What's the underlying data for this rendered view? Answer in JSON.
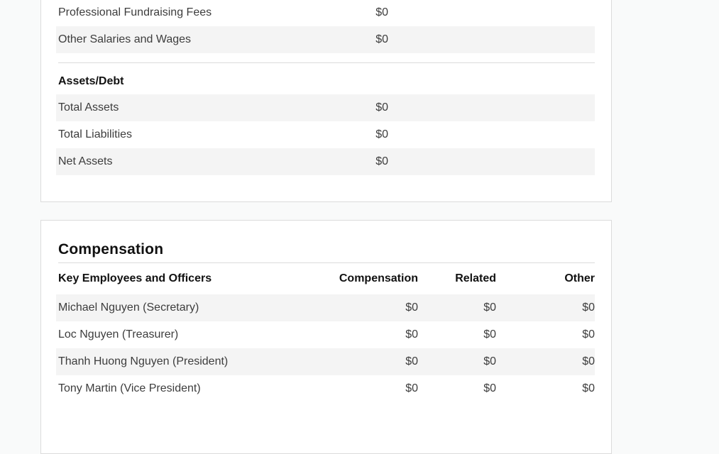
{
  "theme": {
    "page_bg": "#f9fafa",
    "card_bg": "#ffffff",
    "card_border": "#dcdcdc",
    "stripe": "#f4f4f4",
    "divider": "#dcdcdc",
    "text": "#3d3d3d",
    "heading_text": "#111111"
  },
  "financials_card": {
    "expense_rows": [
      {
        "label": "Professional Fundraising Fees",
        "value": "$0"
      },
      {
        "label": "Other Salaries and Wages",
        "value": "$0"
      }
    ],
    "assets_heading": "Assets/Debt",
    "asset_rows": [
      {
        "label": "Total Assets",
        "value": "$0"
      },
      {
        "label": "Total Liabilities",
        "value": "$0"
      },
      {
        "label": "Net Assets",
        "value": "$0"
      }
    ]
  },
  "compensation_card": {
    "heading": "Compensation",
    "columns": {
      "name": "Key Employees and Officers",
      "compensation": "Compensation",
      "related": "Related",
      "other": "Other"
    },
    "rows": [
      {
        "name": "Michael Nguyen (Secretary)",
        "compensation": "$0",
        "related": "$0",
        "other": "$0"
      },
      {
        "name": "Loc Nguyen (Treasurer)",
        "compensation": "$0",
        "related": "$0",
        "other": "$0"
      },
      {
        "name": "Thanh Huong Nguyen (President)",
        "compensation": "$0",
        "related": "$0",
        "other": "$0"
      },
      {
        "name": "Tony Martin (Vice President)",
        "compensation": "$0",
        "related": "$0",
        "other": "$0"
      }
    ]
  }
}
